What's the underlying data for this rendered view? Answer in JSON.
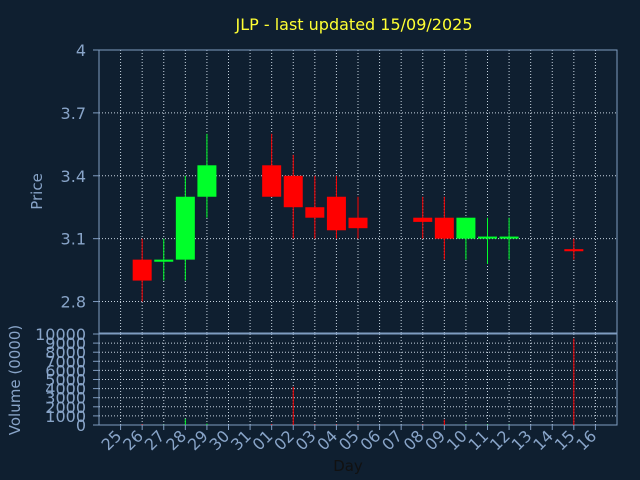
{
  "chart_data": [
    {
      "type": "candlestick",
      "title": "JLP - last updated 15/09/2025",
      "ylabel": "Price",
      "ylim": [
        2.65,
        4.0
      ],
      "yticks": [
        "2.8",
        "3.1",
        "3.4",
        "3.7",
        "4"
      ],
      "ytick_values": [
        2.8,
        3.1,
        3.4,
        3.7,
        4.0
      ],
      "grid": true,
      "categories": [
        "25",
        "26",
        "27",
        "28",
        "29",
        "30",
        "31",
        "01",
        "02",
        "03",
        "04",
        "05",
        "06",
        "07",
        "08",
        "09",
        "10",
        "11",
        "12",
        "13",
        "14",
        "15",
        "16"
      ],
      "candles": [
        {
          "day": "26",
          "open": 3.0,
          "high": 3.1,
          "low": 2.8,
          "close": 2.9
        },
        {
          "day": "27",
          "open": 2.99,
          "high": 3.1,
          "low": 2.9,
          "close": 3.0
        },
        {
          "day": "28",
          "open": 3.0,
          "high": 3.4,
          "low": 2.9,
          "close": 3.3
        },
        {
          "day": "29",
          "open": 3.3,
          "high": 3.6,
          "low": 3.2,
          "close": 3.45
        },
        {
          "day": "01",
          "open": 3.45,
          "high": 3.6,
          "low": 3.3,
          "close": 3.3
        },
        {
          "day": "02",
          "open": 3.4,
          "high": 3.5,
          "low": 3.1,
          "close": 3.25
        },
        {
          "day": "03",
          "open": 3.25,
          "high": 3.4,
          "low": 3.1,
          "close": 3.2
        },
        {
          "day": "04",
          "open": 3.3,
          "high": 3.4,
          "low": 3.1,
          "close": 3.14
        },
        {
          "day": "05",
          "open": 3.2,
          "high": 3.3,
          "low": 3.1,
          "close": 3.15
        },
        {
          "day": "08",
          "open": 3.2,
          "high": 3.3,
          "low": 3.1,
          "close": 3.18
        },
        {
          "day": "09",
          "open": 3.2,
          "high": 3.3,
          "low": 3.0,
          "close": 3.1
        },
        {
          "day": "10",
          "open": 3.1,
          "high": 3.2,
          "low": 3.0,
          "close": 3.2
        },
        {
          "day": "11",
          "open": 3.1,
          "high": 3.2,
          "low": 2.98,
          "close": 3.11
        },
        {
          "day": "12",
          "open": 3.1,
          "high": 3.2,
          "low": 3.0,
          "close": 3.11
        },
        {
          "day": "15",
          "open": 3.05,
          "high": 3.1,
          "low": 3.0,
          "close": 3.04
        }
      ]
    },
    {
      "type": "bar",
      "ylabel": "Volume (0000)",
      "xlabel": "Day",
      "ylim": [
        0,
        10000
      ],
      "yticks": [
        "0",
        "1000",
        "2000",
        "3000",
        "4000",
        "5000",
        "6000",
        "7000",
        "8000",
        "9000",
        "10000"
      ],
      "ytick_values": [
        0,
        1000,
        2000,
        3000,
        4000,
        5000,
        6000,
        7000,
        8000,
        9000,
        10000
      ],
      "grid": true,
      "categories": [
        "25",
        "26",
        "27",
        "28",
        "29",
        "30",
        "31",
        "01",
        "02",
        "03",
        "04",
        "05",
        "06",
        "07",
        "08",
        "09",
        "10",
        "11",
        "12",
        "13",
        "14",
        "15",
        "16"
      ],
      "bars": [
        {
          "day": "26",
          "value": 80,
          "color": "red"
        },
        {
          "day": "27",
          "value": 30,
          "color": "green"
        },
        {
          "day": "28",
          "value": 700,
          "color": "green"
        },
        {
          "day": "29",
          "value": 150,
          "color": "green"
        },
        {
          "day": "01",
          "value": 100,
          "color": "red"
        },
        {
          "day": "02",
          "value": 4200,
          "color": "red"
        },
        {
          "day": "03",
          "value": 60,
          "color": "red"
        },
        {
          "day": "04",
          "value": 60,
          "color": "red"
        },
        {
          "day": "05",
          "value": 50,
          "color": "red"
        },
        {
          "day": "08",
          "value": 50,
          "color": "red"
        },
        {
          "day": "09",
          "value": 600,
          "color": "red"
        },
        {
          "day": "10",
          "value": 60,
          "color": "green"
        },
        {
          "day": "11",
          "value": 60,
          "color": "green"
        },
        {
          "day": "12",
          "value": 40,
          "color": "green"
        },
        {
          "day": "15",
          "value": 9500,
          "color": "red"
        }
      ]
    }
  ],
  "colors": {
    "background": "#0f1f30",
    "title": "#ffff33",
    "text": "#88a4c8",
    "axis": "#7f9cc0",
    "grid": "#c8d4e0",
    "up": "#00ff2a",
    "down": "#ff0000"
  }
}
